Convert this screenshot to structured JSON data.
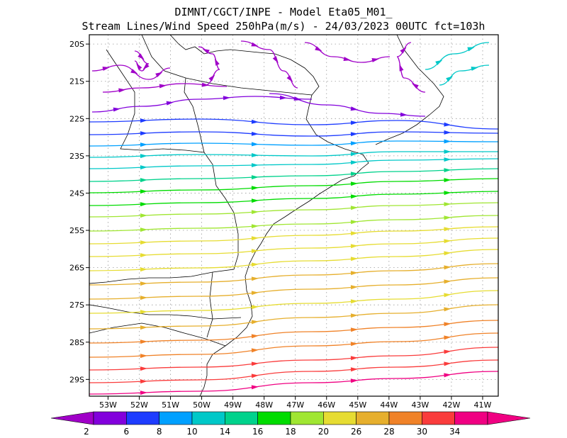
{
  "chart_data": {
    "type": "streamline-map",
    "title_line1": "DIMNT/CGCT/INPE -  Model Eta05_M01_",
    "title_line2": "Stream Lines/Wind Speed 250hPa(m/s) -  24/03/2023 00UTC fct=103h",
    "x_ticks": [
      "53W",
      "52W",
      "51W",
      "50W",
      "49W",
      "48W",
      "47W",
      "46W",
      "45W",
      "44W",
      "43W",
      "42W",
      "41W"
    ],
    "y_ticks": [
      "20S",
      "21S",
      "22S",
      "23S",
      "24S",
      "25S",
      "26S",
      "27S",
      "28S",
      "29S"
    ],
    "colorbar_labels": [
      "2",
      "6",
      "8",
      "10",
      "14",
      "16",
      "18",
      "20",
      "26",
      "28",
      "30",
      "34"
    ],
    "colorbar_colors": [
      "#a000c8",
      "#8200dc",
      "#1e3cff",
      "#00a0ff",
      "#00c8c8",
      "#00d28c",
      "#00dc00",
      "#a0e632",
      "#e6dc32",
      "#e6af2d",
      "#f08228",
      "#fa3c3c",
      "#f00082"
    ],
    "lon_range": [
      -53.6,
      -40.5
    ],
    "lat_range": [
      -29.45,
      -19.75
    ],
    "grid": true
  }
}
